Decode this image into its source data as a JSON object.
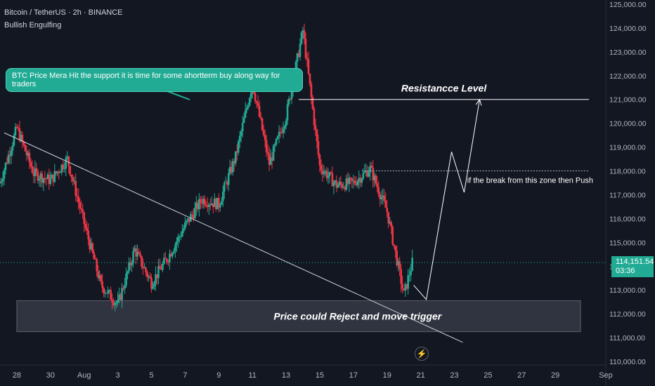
{
  "header": {
    "symbol": "Bitcoin / TetherUS · 2h · BINANCE",
    "indicator": "Bullish Engulfing"
  },
  "callout": {
    "text": "BTC Price Mera Hit the support it is time for some ahortterm buy along way for traders"
  },
  "price_tag": {
    "price": "114,151.54",
    "countdown": "03:36"
  },
  "colors": {
    "background": "#131722",
    "up": "#22ab94",
    "down": "#f23645",
    "callout": "#22ab94",
    "zone": "#2a2e39"
  },
  "icons": [
    "lightning-icon"
  ],
  "chart_data": {
    "type": "candlestick",
    "y_axis": {
      "range": [
        109800,
        125200
      ],
      "ticks": [
        110000,
        111000,
        112000,
        113000,
        114000,
        115000,
        116000,
        117000,
        118000,
        119000,
        120000,
        121000,
        122000,
        123000,
        124000,
        125000
      ],
      "tick_labels": [
        "110,000.00",
        "111,000.00",
        "112,000.00",
        "113,000.00",
        "114,000.00",
        "115,000.00",
        "116,000.00",
        "117,000.00",
        "118,000.00",
        "119,000.00",
        "120,000.00",
        "121,000.00",
        "122,000.00",
        "123,000.00",
        "124,000.00",
        "125,000.00"
      ],
      "side": "right"
    },
    "x_axis": {
      "range": [
        "2025-07-27",
        "2025-09-01"
      ],
      "ticks": [
        "2025-07-28",
        "2025-07-30",
        "2025-08-01",
        "2025-08-03",
        "2025-08-05",
        "2025-08-07",
        "2025-08-09",
        "2025-08-11",
        "2025-08-13",
        "2025-08-15",
        "2025-08-17",
        "2025-08-19",
        "2025-08-21",
        "2025-08-23",
        "2025-08-25",
        "2025-08-27",
        "2025-08-29",
        "2025-09-01"
      ],
      "tick_labels": [
        "28",
        "30",
        "Aug",
        "3",
        "5",
        "7",
        "9",
        "11",
        "13",
        "15",
        "17",
        "19",
        "21",
        "23",
        "25",
        "27",
        "29",
        "Sep"
      ]
    },
    "last_price": 114151.54,
    "price_path": [
      [
        "2025-07-27",
        117500
      ],
      [
        "2025-07-28",
        119800
      ],
      [
        "2025-07-29",
        117900
      ],
      [
        "2025-07-30",
        117600
      ],
      [
        "2025-07-31",
        118500
      ],
      [
        "2025-08-01",
        115800
      ],
      [
        "2025-08-02",
        113200
      ],
      [
        "2025-08-03",
        112400
      ],
      [
        "2025-08-04",
        114700
      ],
      [
        "2025-08-05",
        113300
      ],
      [
        "2025-08-06",
        114400
      ],
      [
        "2025-08-07",
        115700
      ],
      [
        "2025-08-08",
        116800
      ],
      [
        "2025-08-09",
        116600
      ],
      [
        "2025-08-10",
        118600
      ],
      [
        "2025-08-11",
        121700
      ],
      [
        "2025-08-12",
        118300
      ],
      [
        "2025-08-13",
        120300
      ],
      [
        "2025-08-14",
        123900
      ],
      [
        "2025-08-15",
        118200
      ],
      [
        "2025-08-16",
        117400
      ],
      [
        "2025-08-17",
        117500
      ],
      [
        "2025-08-18",
        118100
      ],
      [
        "2025-08-19",
        116300
      ],
      [
        "2025-08-20",
        112800
      ],
      [
        "2025-08-20T12",
        114150
      ]
    ],
    "annotations": [
      {
        "type": "hline",
        "label": "Resistancce Level",
        "y": 121000,
        "from": "2025-08-13T18",
        "to": "2025-08-31"
      },
      {
        "type": "hline_dotted",
        "label": "if the break from this zone then Push",
        "y": 118000,
        "from": "2025-08-17T12",
        "to": "2025-08-31"
      },
      {
        "type": "trendline",
        "from": [
          "2025-07-27T06",
          119600
        ],
        "to": [
          "2025-08-23T12",
          110800
        ]
      },
      {
        "type": "zone",
        "label": "Price could Reject and move trigger",
        "y_range": [
          111250,
          112550
        ],
        "from": "2025-07-28",
        "to": "2025-08-30T12"
      },
      {
        "type": "projection",
        "path": [
          [
            "2025-08-20T14",
            113200
          ],
          [
            "2025-08-21T08",
            112600
          ],
          [
            "2025-08-22T20",
            118800
          ],
          [
            "2025-08-23T14",
            117100
          ],
          [
            "2025-08-24T12",
            121000
          ]
        ]
      }
    ]
  }
}
